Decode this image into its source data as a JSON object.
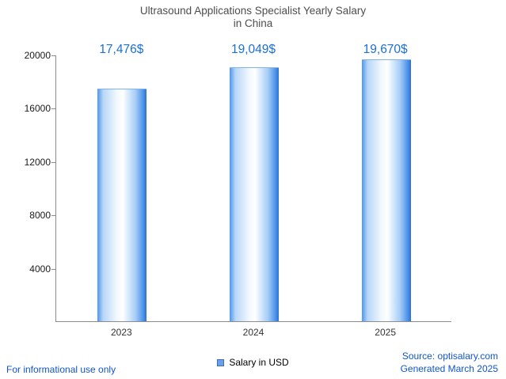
{
  "title": {
    "line1": "Ultrasound Applications Specialist Yearly Salary",
    "line2": "in China"
  },
  "legend": {
    "label": "Salary in USD",
    "swatch_color": "#6d9eeb"
  },
  "footer": {
    "left": "For informational use only",
    "source": "Source: optisalary.com",
    "generated": "Generated March 2025"
  },
  "colors": {
    "value_label": "#1a6fd8",
    "axis": "#8c8c8c",
    "bar_main": "#2671d9",
    "link_blue": "#1155cc",
    "title_gray": "#4d4d4d"
  },
  "chart_data": {
    "type": "bar",
    "title": "Ultrasound Applications Specialist Yearly Salary in China",
    "categories": [
      "2023",
      "2024",
      "2025"
    ],
    "values": [
      17476,
      19049,
      19670
    ],
    "value_labels": [
      "17,476$",
      "19,049$",
      "19,670$"
    ],
    "series_name": "Salary in USD",
    "xlabel": "",
    "ylabel": "",
    "ylim": [
      0,
      20000
    ],
    "yticks": [
      4000,
      8000,
      12000,
      16000,
      20000
    ],
    "grid": false,
    "legend_position": "bottom"
  }
}
